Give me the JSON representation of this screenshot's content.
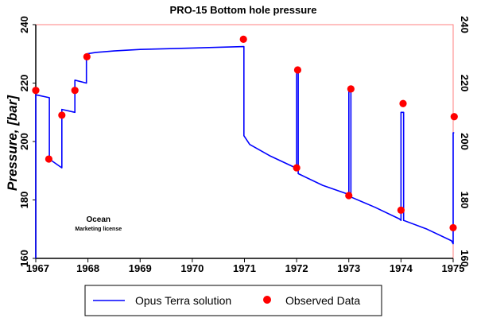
{
  "chart_data": {
    "type": "line",
    "title": "PRO-15 Bottom hole pressure",
    "ylabel": "Pressure, [bar]",
    "xlabel": "",
    "xlim": [
      1967,
      1975
    ],
    "ylim": [
      160,
      240
    ],
    "x_ticks": [
      "1967",
      "1968",
      "1969",
      "1970",
      "1971",
      "1972",
      "1973",
      "1974",
      "1975"
    ],
    "y_ticks": [
      "160",
      "180",
      "200",
      "220",
      "240"
    ],
    "grid": false,
    "legend_position": "bottom",
    "colors": {
      "line": "#0000ff",
      "points": "#ff0000",
      "plot_border": "#ff8080"
    },
    "series": [
      {
        "name": "Opus Terra solution",
        "style": "line",
        "x": [
          1967.0,
          1967.0,
          1967.26,
          1967.26,
          1967.5,
          1967.5,
          1967.75,
          1967.75,
          1967.97,
          1967.97,
          1968.15,
          1968.5,
          1969.0,
          1970.0,
          1970.99,
          1970.99,
          1971.1,
          1971.5,
          1971.98,
          1972.0,
          1972.0,
          1972.03,
          1972.03,
          1972.5,
          1972.98,
          1973.0,
          1973.0,
          1973.04,
          1973.04,
          1973.5,
          1973.97,
          1974.0,
          1974.0,
          1974.05,
          1974.05,
          1974.5,
          1974.97,
          1975.0,
          1975.0,
          1975.02
        ],
        "y": [
          160,
          216,
          215,
          194,
          191,
          211,
          210,
          221,
          220,
          230,
          230.5,
          231,
          231.5,
          232,
          232.5,
          202,
          199,
          195,
          191,
          190,
          224,
          224,
          189,
          185,
          182,
          181.5,
          217,
          217,
          181,
          177.5,
          173.5,
          173,
          210,
          210,
          173,
          170,
          166,
          165,
          203,
          203
        ]
      },
      {
        "name": "Observed Data",
        "style": "markers",
        "x": [
          1967.0,
          1967.25,
          1967.5,
          1967.75,
          1967.98,
          1970.98,
          1972.0,
          1972.02,
          1973.0,
          1973.04,
          1974.0,
          1974.04,
          1975.0,
          1975.02
        ],
        "y": [
          217.5,
          194,
          209,
          217.5,
          229,
          235,
          191,
          224.5,
          181.5,
          218,
          176.5,
          213,
          170.5,
          208.5
        ]
      }
    ],
    "annotations": [
      {
        "text": "Ocean",
        "x": 1968.2,
        "y": 172.5
      },
      {
        "text": "Marketing license",
        "x": 1968.2,
        "y": 169.5
      }
    ]
  }
}
